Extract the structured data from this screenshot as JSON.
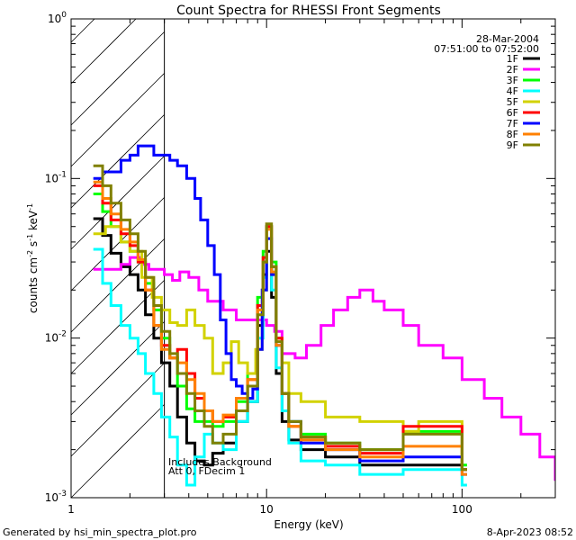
{
  "chart_data": {
    "type": "line",
    "title": "Count Spectra for RHESSI Front Segments",
    "xlabel": "Energy (keV)",
    "ylabel": "counts cm⁻² s⁻¹ keV⁻¹",
    "ylabel_parts": {
      "prefix": "counts cm",
      "exp1": "-2",
      "mid1": " s",
      "exp2": "-1",
      "mid2": " keV",
      "exp3": "-1"
    },
    "xscale": "log",
    "yscale": "log",
    "xlim": [
      1,
      300
    ],
    "ylim": [
      0.001,
      1
    ],
    "x_ticks": [
      {
        "value": 1,
        "label": "1"
      },
      {
        "value": 10,
        "label": "10"
      },
      {
        "value": 100,
        "label": "100"
      }
    ],
    "y_ticks": [
      {
        "value": 1,
        "mant": "10",
        "exp": "0"
      },
      {
        "value": 0.1,
        "mant": "10",
        "exp": "-1"
      },
      {
        "value": 0.01,
        "mant": "10",
        "exp": "-2"
      },
      {
        "value": 0.001,
        "mant": "10",
        "exp": "-3"
      }
    ],
    "shaded_region": {
      "xmin": 1,
      "xmax": 3,
      "pattern": "diagonal hatch"
    },
    "date": "28-Mar-2004",
    "time_range": "07:51:00 to 07:52:00",
    "legend_position": "top-right",
    "annotations": [
      "Includes Background",
      "Att 0, FDecim 1"
    ],
    "footer_left": "Generated by hsi_min_spectra_plot.pro",
    "footer_right": "8-Apr-2023 08:52",
    "series": [
      {
        "name": "1F",
        "color": "#000000",
        "x": [
          1.3,
          1.45,
          1.6,
          1.8,
          2.0,
          2.2,
          2.4,
          2.65,
          2.9,
          3.2,
          3.5,
          3.9,
          4.3,
          4.8,
          5.3,
          6.0,
          7.0,
          8.0,
          9.0,
          9.6,
          10.0,
          10.6,
          11.2,
          12.0,
          13.0,
          15.0,
          20.0,
          30.0,
          50.0,
          100.0
        ],
        "y": [
          0.056,
          0.044,
          0.034,
          0.028,
          0.025,
          0.02,
          0.014,
          0.01,
          0.007,
          0.005,
          0.0032,
          0.0022,
          0.0017,
          0.0016,
          0.0019,
          0.0022,
          0.003,
          0.004,
          0.012,
          0.025,
          0.035,
          0.018,
          0.006,
          0.003,
          0.0023,
          0.002,
          0.0018,
          0.0016,
          0.0016,
          0.0015
        ]
      },
      {
        "name": "2F",
        "color": "#ff00ff",
        "x": [
          1.3,
          1.5,
          1.8,
          2.0,
          2.3,
          2.5,
          2.8,
          3.0,
          3.3,
          3.6,
          4.0,
          4.5,
          5.0,
          5.5,
          6.0,
          7.0,
          8.0,
          9.0,
          10.0,
          11.0,
          12.0,
          14.0,
          16.0,
          19.0,
          22.0,
          26.0,
          30.0,
          35.0,
          40.0,
          50.0,
          60.0,
          80.0,
          100.0,
          130.0,
          160.0,
          200.0,
          250.0,
          300.0
        ],
        "y": [
          0.027,
          0.027,
          0.029,
          0.032,
          0.029,
          0.027,
          0.027,
          0.025,
          0.023,
          0.026,
          0.024,
          0.02,
          0.017,
          0.017,
          0.015,
          0.013,
          0.013,
          0.013,
          0.012,
          0.011,
          0.008,
          0.0075,
          0.009,
          0.012,
          0.015,
          0.018,
          0.02,
          0.017,
          0.015,
          0.012,
          0.009,
          0.0075,
          0.0055,
          0.0042,
          0.0032,
          0.0025,
          0.0018,
          0.0013
        ]
      },
      {
        "name": "3F",
        "color": "#00ff00",
        "x": [
          1.3,
          1.45,
          1.6,
          1.8,
          2.0,
          2.2,
          2.4,
          2.65,
          2.9,
          3.2,
          3.5,
          3.9,
          4.3,
          4.8,
          5.3,
          6.0,
          7.0,
          8.0,
          9.0,
          9.6,
          10.0,
          10.6,
          11.2,
          12.0,
          13.0,
          15.0,
          20.0,
          30.0,
          50.0,
          100.0
        ],
        "y": [
          0.08,
          0.062,
          0.05,
          0.04,
          0.035,
          0.03,
          0.022,
          0.015,
          0.01,
          0.0075,
          0.005,
          0.0036,
          0.003,
          0.003,
          0.0028,
          0.003,
          0.004,
          0.006,
          0.018,
          0.035,
          0.05,
          0.03,
          0.01,
          0.0045,
          0.003,
          0.0025,
          0.0022,
          0.002,
          0.0026,
          0.0016
        ]
      },
      {
        "name": "4F",
        "color": "#00ffff",
        "x": [
          1.3,
          1.45,
          1.6,
          1.8,
          2.0,
          2.2,
          2.4,
          2.65,
          2.9,
          3.2,
          3.5,
          3.9,
          4.3,
          4.8,
          5.3,
          6.0,
          7.0,
          8.0,
          9.0,
          9.6,
          10.0,
          10.6,
          11.2,
          12.0,
          13.0,
          15.0,
          20.0,
          30.0,
          50.0,
          100.0
        ],
        "y": [
          0.036,
          0.022,
          0.016,
          0.012,
          0.01,
          0.008,
          0.006,
          0.0045,
          0.0032,
          0.0024,
          0.0016,
          0.0012,
          0.0018,
          0.0025,
          0.0022,
          0.002,
          0.003,
          0.004,
          0.01,
          0.024,
          0.042,
          0.02,
          0.0065,
          0.0035,
          0.0022,
          0.0017,
          0.0016,
          0.0014,
          0.0015,
          0.0012
        ]
      },
      {
        "name": "5F",
        "color": "#d2d200",
        "x": [
          1.3,
          1.5,
          1.8,
          2.0,
          2.3,
          2.6,
          2.9,
          3.2,
          3.5,
          3.9,
          4.3,
          4.8,
          5.3,
          6.0,
          6.6,
          7.2,
          8.0,
          8.8,
          9.5,
          10.0,
          10.6,
          11.2,
          12.0,
          13.0,
          15.0,
          20.0,
          30.0,
          50.0,
          60.0,
          100.0
        ],
        "y": [
          0.045,
          0.05,
          0.04,
          0.035,
          0.024,
          0.018,
          0.015,
          0.0125,
          0.012,
          0.015,
          0.012,
          0.01,
          0.006,
          0.007,
          0.0095,
          0.007,
          0.006,
          0.0085,
          0.02,
          0.042,
          0.025,
          0.01,
          0.007,
          0.0045,
          0.004,
          0.0032,
          0.003,
          0.0026,
          0.003,
          0.0015
        ]
      },
      {
        "name": "6F",
        "color": "#ff0000",
        "x": [
          1.3,
          1.45,
          1.6,
          1.8,
          2.0,
          2.2,
          2.4,
          2.65,
          2.9,
          3.2,
          3.5,
          3.9,
          4.3,
          4.8,
          5.3,
          6.0,
          7.0,
          8.0,
          9.0,
          9.6,
          10.0,
          10.6,
          11.2,
          12.0,
          13.0,
          15.0,
          20.0,
          30.0,
          50.0,
          100.0
        ],
        "y": [
          0.09,
          0.07,
          0.055,
          0.045,
          0.038,
          0.03,
          0.02,
          0.012,
          0.009,
          0.0075,
          0.0085,
          0.006,
          0.0042,
          0.0035,
          0.003,
          0.0032,
          0.0042,
          0.0055,
          0.016,
          0.032,
          0.05,
          0.028,
          0.01,
          0.0045,
          0.0028,
          0.0024,
          0.0021,
          0.0019,
          0.0028,
          0.0015
        ]
      },
      {
        "name": "7F",
        "color": "#0000ff",
        "x": [
          1.3,
          1.45,
          1.6,
          1.8,
          2.0,
          2.2,
          2.4,
          2.65,
          2.9,
          3.2,
          3.5,
          3.9,
          4.3,
          4.6,
          5.0,
          5.4,
          5.8,
          6.2,
          6.6,
          7.0,
          7.5,
          8.0,
          8.5,
          9.0,
          9.5,
          10.0,
          10.6,
          11.2,
          12.0,
          13.0,
          15.0,
          20.0,
          30.0,
          50.0,
          100.0
        ],
        "y": [
          0.1,
          0.11,
          0.11,
          0.13,
          0.14,
          0.16,
          0.16,
          0.14,
          0.14,
          0.13,
          0.12,
          0.1,
          0.075,
          0.055,
          0.038,
          0.025,
          0.013,
          0.008,
          0.0055,
          0.005,
          0.0045,
          0.0042,
          0.0048,
          0.0085,
          0.02,
          0.042,
          0.025,
          0.009,
          0.0045,
          0.003,
          0.0022,
          0.002,
          0.0017,
          0.0018,
          0.0014
        ]
      },
      {
        "name": "8F",
        "color": "#ff8000",
        "x": [
          1.3,
          1.45,
          1.6,
          1.8,
          2.0,
          2.2,
          2.4,
          2.65,
          2.9,
          3.2,
          3.5,
          3.9,
          4.3,
          4.8,
          5.3,
          6.0,
          7.0,
          8.0,
          9.0,
          9.6,
          10.0,
          10.6,
          11.2,
          12.0,
          13.0,
          15.0,
          20.0,
          30.0,
          50.0,
          100.0
        ],
        "y": [
          0.095,
          0.075,
          0.06,
          0.048,
          0.04,
          0.031,
          0.02,
          0.012,
          0.0085,
          0.0075,
          0.007,
          0.0055,
          0.0045,
          0.0035,
          0.003,
          0.0033,
          0.0042,
          0.0055,
          0.015,
          0.03,
          0.048,
          0.026,
          0.009,
          0.0045,
          0.0028,
          0.0023,
          0.002,
          0.0018,
          0.0021,
          0.0014
        ]
      },
      {
        "name": "9F",
        "color": "#808000",
        "x": [
          1.3,
          1.45,
          1.6,
          1.8,
          2.0,
          2.2,
          2.4,
          2.65,
          2.9,
          3.2,
          3.5,
          3.9,
          4.3,
          4.8,
          5.3,
          6.0,
          7.0,
          8.0,
          9.0,
          9.6,
          10.0,
          10.6,
          11.2,
          12.0,
          13.0,
          15.0,
          20.0,
          30.0,
          50.0,
          100.0
        ],
        "y": [
          0.12,
          0.09,
          0.07,
          0.055,
          0.045,
          0.035,
          0.024,
          0.016,
          0.011,
          0.008,
          0.006,
          0.0045,
          0.0035,
          0.0028,
          0.0022,
          0.0025,
          0.0035,
          0.005,
          0.014,
          0.03,
          0.052,
          0.028,
          0.0095,
          0.0045,
          0.003,
          0.0024,
          0.0022,
          0.002,
          0.0025,
          0.0015
        ]
      }
    ]
  }
}
